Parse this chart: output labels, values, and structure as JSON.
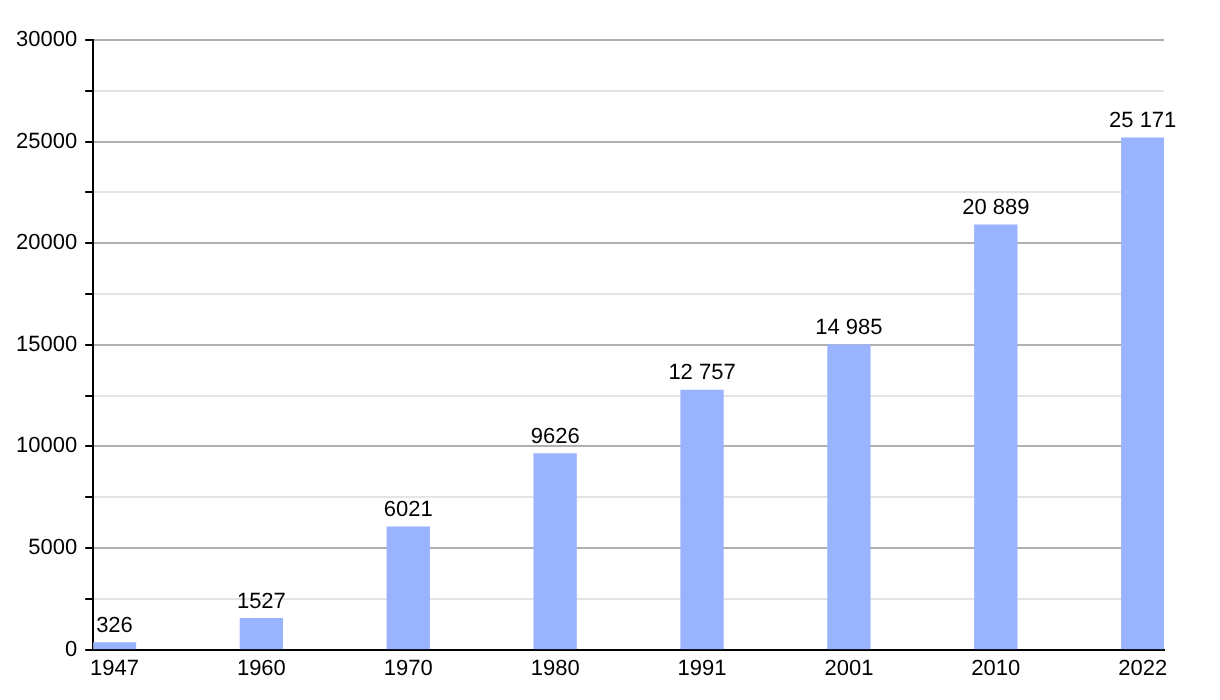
{
  "chart_data": {
    "type": "bar",
    "categories": [
      "1947",
      "1960",
      "1970",
      "1980",
      "1991",
      "2001",
      "2010",
      "2022"
    ],
    "values": [
      326,
      1527,
      6021,
      9626,
      12757,
      14985,
      20889,
      25171
    ],
    "value_labels": [
      "326",
      "1527",
      "6021",
      "9626",
      "12 757",
      "14 985",
      "20 889",
      "25 171"
    ],
    "color": "#99b3ff",
    "ylim": [
      0,
      30000
    ],
    "yticks": [
      0,
      {
        "value": 2500,
        "label": null
      },
      5000,
      {
        "value": 7500,
        "label": null
      },
      10000,
      {
        "value": 12500,
        "label": null
      },
      15000,
      {
        "value": 17500,
        "label": null
      },
      20000,
      {
        "value": 22500,
        "label": null
      },
      25000,
      {
        "value": 27500,
        "label": null
      },
      30000
    ],
    "grid": "y"
  }
}
